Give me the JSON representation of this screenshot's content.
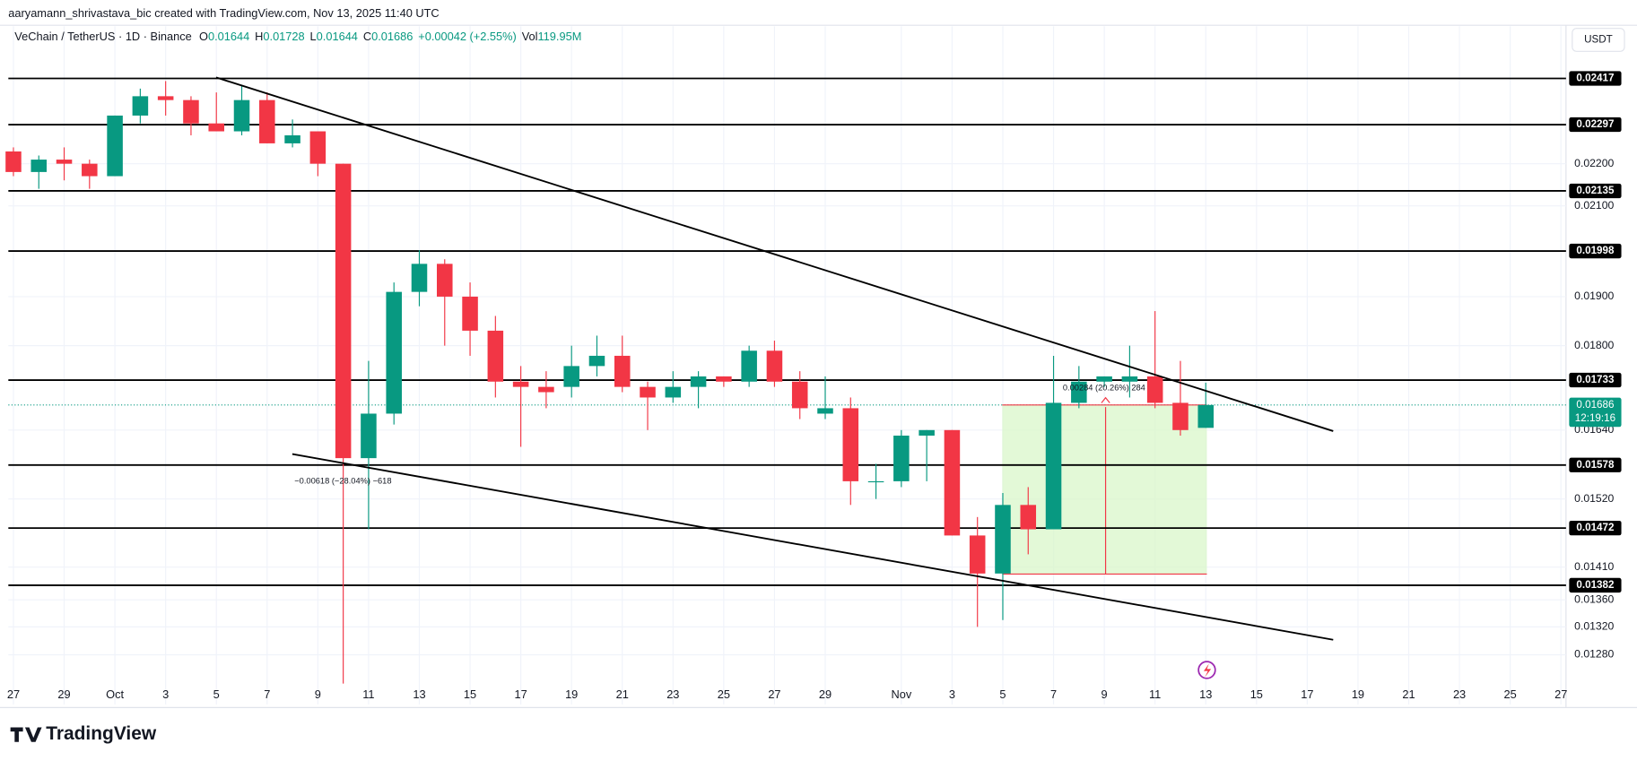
{
  "header": {
    "attribution": "aaryamann_shrivastava_bic created with TradingView.com, Nov 13, 2025 11:40 UTC"
  },
  "legend": {
    "symbol": "VeChain / TetherUS · 1D · Binance",
    "o": "O",
    "h": "H",
    "l": "L",
    "c": "C",
    "change": "+0.00042 (+2.55%)",
    "vol": "Vol",
    "volume": "119.95M"
  },
  "currency": "USDT",
  "countdown": "12:19:16",
  "brand": "TradingView",
  "annotations": {
    "measure_up": "0.00284 (20.26%) 284",
    "measure_down": "−0.00618 (−28.04%) −618"
  },
  "chart_data": {
    "type": "candlestick",
    "up_color": "#089981",
    "down_color": "#f23645",
    "x": [
      0,
      1,
      2,
      3,
      4,
      5,
      6,
      7,
      8,
      9,
      10,
      11,
      12,
      13,
      14,
      15,
      16,
      17,
      18,
      19,
      20,
      21,
      22,
      23,
      24,
      25,
      26,
      27,
      28,
      29,
      30,
      31,
      32,
      33,
      34,
      35,
      36,
      37,
      38,
      39,
      40,
      41,
      42,
      43,
      44,
      45,
      46,
      47
    ],
    "open": [
      0.0223,
      0.0218,
      0.0221,
      0.022,
      0.0217,
      0.0232,
      0.0237,
      0.0236,
      0.023,
      0.0228,
      0.0236,
      0.0225,
      0.0228,
      0.022,
      0.0159,
      0.0167,
      0.0191,
      0.0197,
      0.019,
      0.0183,
      0.0173,
      0.0172,
      0.0172,
      0.0176,
      0.0178,
      0.0172,
      0.017,
      0.0172,
      0.0174,
      0.0173,
      0.0179,
      0.0173,
      0.0167,
      0.0168,
      0.0155,
      0.0155,
      0.0163,
      0.0164,
      0.0146,
      0.014,
      0.0151,
      0.0147,
      0.0169,
      0.0173,
      0.0173,
      0.0174,
      0.0169,
      0.01644
    ],
    "high": [
      0.0224,
      0.0222,
      0.0224,
      0.0221,
      0.0232,
      0.0239,
      0.0241,
      0.0237,
      0.0238,
      0.024,
      0.0238,
      0.0231,
      0.0228,
      0.022,
      0.0177,
      0.0193,
      0.02,
      0.0198,
      0.0193,
      0.0186,
      0.0176,
      0.0175,
      0.018,
      0.0182,
      0.0182,
      0.0173,
      0.0175,
      0.0175,
      0.0174,
      0.018,
      0.0181,
      0.0175,
      0.0174,
      0.017,
      0.0158,
      0.0164,
      0.0164,
      0.0164,
      0.0149,
      0.0153,
      0.0154,
      0.0178,
      0.0176,
      0.0174,
      0.018,
      0.0187,
      0.0177,
      0.01728
    ],
    "low": [
      0.0217,
      0.0214,
      0.0216,
      0.0214,
      0.0217,
      0.023,
      0.0232,
      0.0227,
      0.0228,
      0.0227,
      0.0225,
      0.0224,
      0.0217,
      0.0124,
      0.0147,
      0.0165,
      0.0188,
      0.018,
      0.0178,
      0.017,
      0.0161,
      0.0168,
      0.017,
      0.0174,
      0.0171,
      0.0164,
      0.0169,
      0.0168,
      0.0172,
      0.0172,
      0.0172,
      0.0166,
      0.0166,
      0.0151,
      0.0152,
      0.0154,
      0.0155,
      0.0146,
      0.0132,
      0.0133,
      0.0143,
      0.0147,
      0.0168,
      0.0172,
      0.017,
      0.0168,
      0.0163,
      0.01644
    ],
    "close": [
      0.0218,
      0.0221,
      0.022,
      0.0217,
      0.0232,
      0.0237,
      0.0236,
      0.023,
      0.0228,
      0.0236,
      0.0225,
      0.0227,
      0.022,
      0.0159,
      0.0167,
      0.0191,
      0.0197,
      0.019,
      0.0183,
      0.0173,
      0.0172,
      0.0171,
      0.0176,
      0.0178,
      0.0172,
      0.017,
      0.0172,
      0.0174,
      0.0173,
      0.0179,
      0.0173,
      0.0168,
      0.0168,
      0.0155,
      0.0155,
      0.0163,
      0.0164,
      0.0146,
      0.014,
      0.0151,
      0.0147,
      0.0169,
      0.0173,
      0.0174,
      0.0174,
      0.0169,
      0.0164,
      0.01686
    ],
    "xlim": [
      -0.2,
      61.2
    ],
    "xticks": [
      {
        "value": 0,
        "label": "27"
      },
      {
        "value": 2,
        "label": "29"
      },
      {
        "value": 4,
        "label": "Oct"
      },
      {
        "value": 6,
        "label": "3"
      },
      {
        "value": 8,
        "label": "5"
      },
      {
        "value": 10,
        "label": "7"
      },
      {
        "value": 12,
        "label": "9"
      },
      {
        "value": 14,
        "label": "11"
      },
      {
        "value": 16,
        "label": "13"
      },
      {
        "value": 18,
        "label": "15"
      },
      {
        "value": 20,
        "label": "17"
      },
      {
        "value": 22,
        "label": "19"
      },
      {
        "value": 24,
        "label": "21"
      },
      {
        "value": 26,
        "label": "23"
      },
      {
        "value": 28,
        "label": "25"
      },
      {
        "value": 30,
        "label": "27"
      },
      {
        "value": 32,
        "label": "29"
      },
      {
        "value": 35,
        "label": "Nov"
      },
      {
        "value": 37,
        "label": "3"
      },
      {
        "value": 39,
        "label": "5"
      },
      {
        "value": 41,
        "label": "7"
      },
      {
        "value": 43,
        "label": "9"
      },
      {
        "value": 45,
        "label": "11"
      },
      {
        "value": 47,
        "label": "13"
      },
      {
        "value": 49,
        "label": "15"
      },
      {
        "value": 51,
        "label": "17"
      },
      {
        "value": 53,
        "label": "19"
      },
      {
        "value": 55,
        "label": "21"
      },
      {
        "value": 57,
        "label": "23"
      },
      {
        "value": 59,
        "label": "25"
      },
      {
        "value": 61,
        "label": "27"
      }
    ],
    "log_scale": true,
    "ylim": [
      0.0124,
      0.0256
    ],
    "yticks": [
      {
        "value": 0.022,
        "label": "0.02200"
      },
      {
        "value": 0.021,
        "label": "0.02100"
      },
      {
        "value": 0.019,
        "label": "0.01900"
      },
      {
        "value": 0.018,
        "label": "0.01800"
      },
      {
        "value": 0.0164,
        "label": "0.01640"
      },
      {
        "value": 0.0152,
        "label": "0.01520"
      },
      {
        "value": 0.0141,
        "label": "0.01410"
      },
      {
        "value": 0.0136,
        "label": "0.01360"
      },
      {
        "value": 0.0132,
        "label": "0.01320"
      },
      {
        "value": 0.0128,
        "label": "0.01280"
      }
    ],
    "grid": true,
    "levels": [
      0.02417,
      0.02297,
      0.02135,
      0.01998,
      0.01733,
      0.01578,
      0.01472,
      0.01382
    ]
  }
}
